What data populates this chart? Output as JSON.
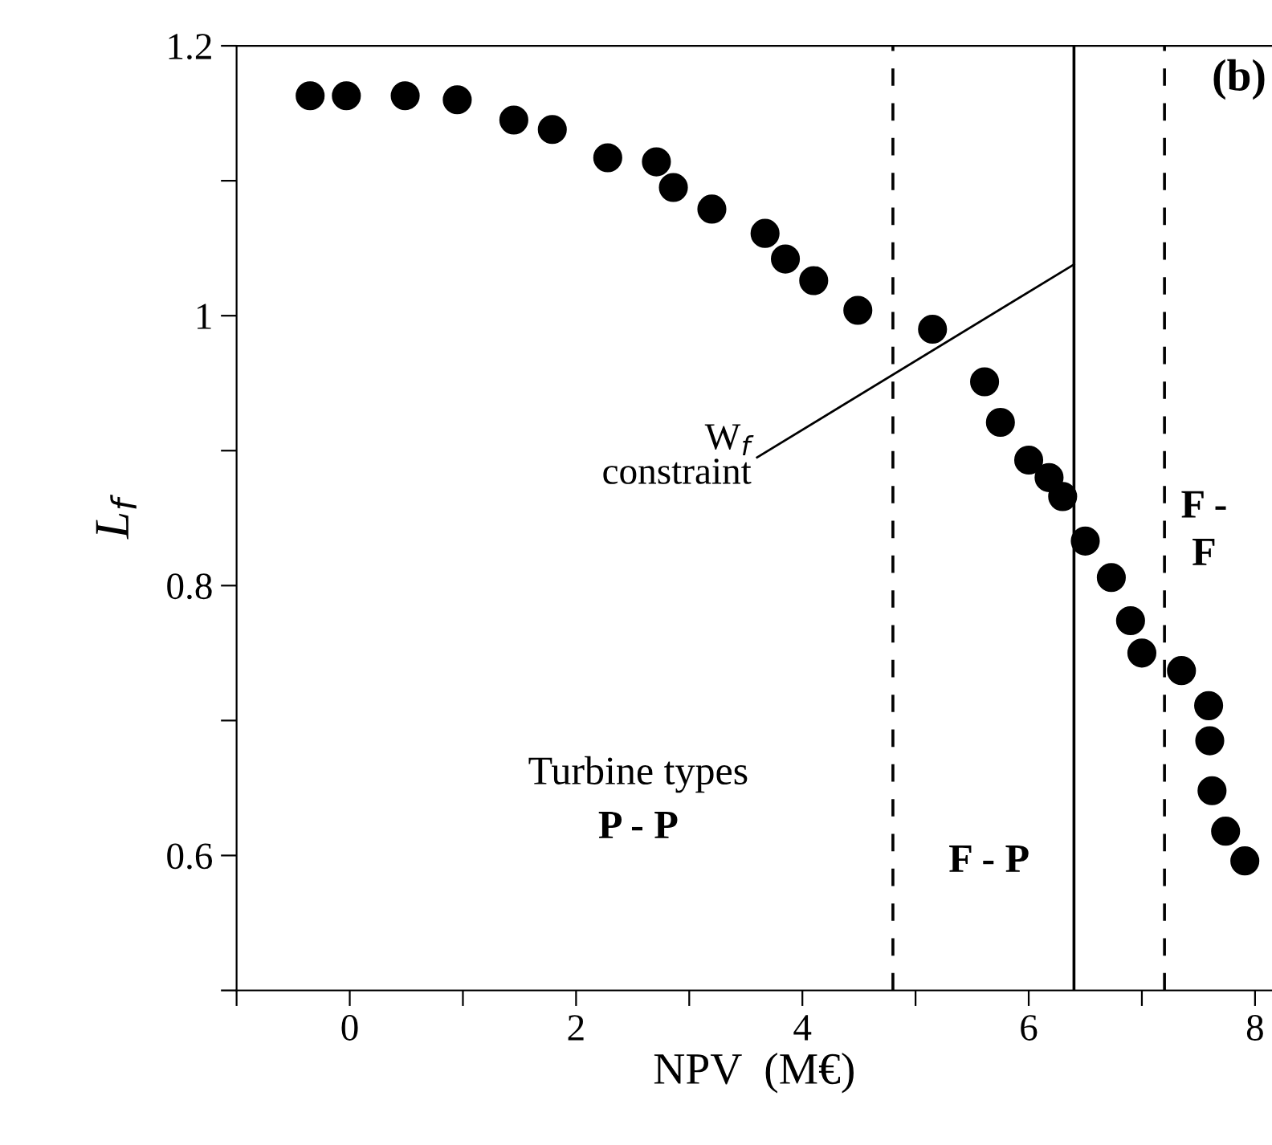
{
  "chart_data": {
    "type": "scatter",
    "xlabel": "NPV  (M€)",
    "ylabel": "L$_{f}$",
    "xlim": [
      -1,
      8.15
    ],
    "ylim": [
      0.5,
      1.2
    ],
    "xticks": [
      {
        "value": -1,
        "label": null
      },
      0,
      {
        "value": 1,
        "label": null
      },
      2,
      {
        "value": 3,
        "label": null
      },
      4,
      {
        "value": 5,
        "label": null
      },
      6,
      {
        "value": 7,
        "label": null
      },
      8
    ],
    "yticks": [
      {
        "value": 0.5,
        "label": null
      },
      0.6,
      {
        "value": 0.7,
        "label": null
      },
      0.8,
      {
        "value": 0.9,
        "label": null
      },
      1,
      {
        "value": 1.1,
        "label": null
      },
      1.2
    ],
    "grid": false,
    "legend": false,
    "series": [
      {
        "marker": "circle",
        "color": "#000000",
        "x": [
          -0.35,
          -0.03,
          0.49,
          0.95,
          1.45,
          1.79,
          2.28,
          2.71,
          2.86,
          3.2,
          3.67,
          3.85,
          4.1,
          4.49,
          5.15,
          5.61,
          5.75,
          6.0,
          6.18,
          6.3,
          6.5,
          6.73,
          6.9,
          7.0,
          7.35,
          7.59,
          7.6,
          7.62,
          7.74,
          7.91
        ],
        "values": [
          1.163,
          1.163,
          1.163,
          1.16,
          1.145,
          1.138,
          1.117,
          1.114,
          1.095,
          1.079,
          1.061,
          1.042,
          1.026,
          1.004,
          0.99,
          0.951,
          0.921,
          0.893,
          0.88,
          0.866,
          0.833,
          0.806,
          0.774,
          0.75,
          0.737,
          0.711,
          0.685,
          0.648,
          0.618,
          0.596
        ]
      },
      {
        "type": "line",
        "color": "#000000",
        "line_style": "solid",
        "x": [
          3.6,
          6.4
        ],
        "values": [
          0.895,
          1.038
        ]
      }
    ],
    "ref_lines": [
      {
        "axis": "x",
        "value": 4.8,
        "line_style": "dashed",
        "color": "#000000"
      },
      {
        "axis": "x",
        "value": 6.4,
        "line_style": "solid",
        "color": "#000000"
      },
      {
        "axis": "x",
        "value": 7.2,
        "line_style": "dashed",
        "color": "#000000"
      }
    ],
    "annotations": [
      "(b)",
      "Turbine types",
      "P - P",
      "F - P",
      "F -\nF",
      {
        "text": "W$_{f}$\nconstraint",
        "x": 3.6,
        "y": 0.895
      }
    ]
  }
}
